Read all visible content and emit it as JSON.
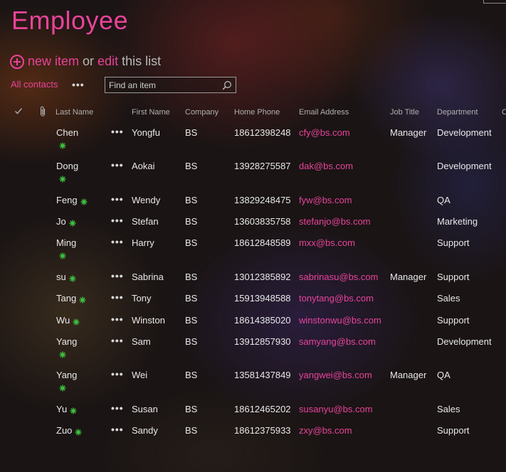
{
  "page": {
    "title": "Employee",
    "new_item_label": "new item",
    "or_label": "or",
    "edit_label": "edit",
    "this_list_label": "this list",
    "view_name": "All contacts",
    "view_more": "•••",
    "search_placeholder": "Find an item"
  },
  "columns": [
    "Last Name",
    "First Name",
    "Company",
    "Home Phone",
    "Email Address",
    "Job Title",
    "Department",
    "C"
  ],
  "colors": {
    "accent": "#e8439a",
    "new_badge": "#3fbf3f"
  },
  "rows": [
    {
      "last": "Chen",
      "first": "Yongfu",
      "company": "BS",
      "phone": "18612398248",
      "email": "cfy@bs.com",
      "job": "Manager",
      "dept": "Development",
      "dots": "•••",
      "badge": "below"
    },
    {
      "last": "Dong",
      "first": "Aokai",
      "company": "BS",
      "phone": "13928275587",
      "email": "dak@bs.com",
      "job": "",
      "dept": "Development",
      "dots": "•••",
      "badge": "below"
    },
    {
      "last": "Feng",
      "first": "Wendy",
      "company": "BS",
      "phone": "13829248475",
      "email": "fyw@bs.com",
      "job": "",
      "dept": "QA",
      "dots": "•••",
      "badge": "inline"
    },
    {
      "last": "Jo",
      "first": "Stefan",
      "company": "BS",
      "phone": "13603835758",
      "email": "stefanjo@bs.com",
      "job": "",
      "dept": "Marketing",
      "dots": "•••",
      "badge": "inline"
    },
    {
      "last": "Ming",
      "first": "Harry",
      "company": "BS",
      "phone": "18612848589",
      "email": "mxx@bs.com",
      "job": "",
      "dept": "Support",
      "dots": "•••",
      "badge": "below"
    },
    {
      "last": "su",
      "first": "Sabrina",
      "company": "BS",
      "phone": "13012385892",
      "email": "sabrinasu@bs.com",
      "job": "Manager",
      "dept": "Support",
      "dots": "•••",
      "badge": "inline"
    },
    {
      "last": "Tang",
      "first": "Tony",
      "company": "BS",
      "phone": "15913948588",
      "email": "tonytang@bs.com",
      "job": "",
      "dept": "Sales",
      "dots": "•••",
      "badge": "inline"
    },
    {
      "last": "Wu",
      "first": "Winston",
      "company": "BS",
      "phone": "18614385020",
      "email": "winstonwu@bs.com",
      "job": "",
      "dept": "Support",
      "dots": "•••",
      "badge": "inline"
    },
    {
      "last": "Yang",
      "first": "Sam",
      "company": "BS",
      "phone": "13912857930",
      "email": "samyang@bs.com",
      "job": "",
      "dept": "Development",
      "dots": "•••",
      "badge": "below"
    },
    {
      "last": "Yang",
      "first": "Wei",
      "company": "BS",
      "phone": "13581437849",
      "email": "yangwei@bs.com",
      "job": "Manager",
      "dept": "QA",
      "dots": "•••",
      "badge": "below"
    },
    {
      "last": "Yu",
      "first": "Susan",
      "company": "BS",
      "phone": "18612465202",
      "email": "susanyu@bs.com",
      "job": "",
      "dept": "Sales",
      "dots": "•••",
      "badge": "inline"
    },
    {
      "last": "Zuo",
      "first": "Sandy",
      "company": "BS",
      "phone": "18612375933",
      "email": "zxy@bs.com",
      "job": "",
      "dept": "Support",
      "dots": "•••",
      "badge": "inline"
    }
  ]
}
